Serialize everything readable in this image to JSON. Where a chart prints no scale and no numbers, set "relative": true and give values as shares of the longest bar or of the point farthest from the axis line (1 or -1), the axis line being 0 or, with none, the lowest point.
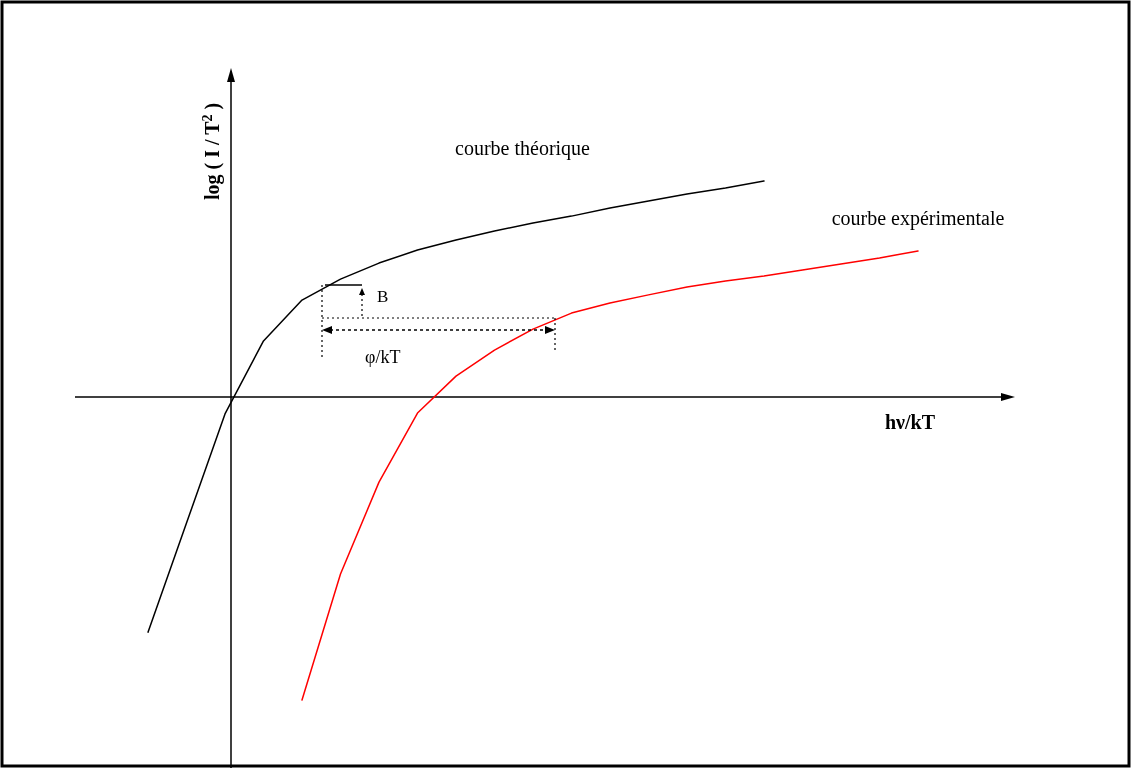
{
  "chart_data": {
    "type": "line",
    "relative": true,
    "xlabel": "hν/kT",
    "ylabel": "log ( I / T$^{2}$ )",
    "marker": "none",
    "line_style": "solid",
    "categories": [
      null,
      null,
      null,
      null,
      null,
      null,
      null,
      null,
      null,
      null,
      null,
      null,
      null,
      null,
      null,
      null,
      null,
      null,
      null,
      null,
      null
    ],
    "series": [
      {
        "name": "courbe théorique",
        "color": "#000000",
        "values": [
          -0.776,
          -0.416,
          -0.056,
          0.185,
          0.32,
          0.389,
          0.442,
          0.485,
          0.518,
          0.548,
          0.574,
          0.597,
          0.624,
          0.647,
          0.67,
          0.69,
          0.713,
          null,
          null,
          null,
          null
        ]
      },
      {
        "name": "courbe expérimentale",
        "color": "#ff0000",
        "values": [
          null,
          null,
          null,
          null,
          -1,
          -0.584,
          -0.281,
          -0.053,
          0.069,
          0.155,
          0.224,
          0.277,
          0.31,
          0.337,
          0.363,
          0.383,
          0.399,
          0.419,
          0.439,
          0.459,
          0.482
        ]
      }
    ],
    "annotations": [
      "B",
      "φ/kT"
    ]
  }
}
